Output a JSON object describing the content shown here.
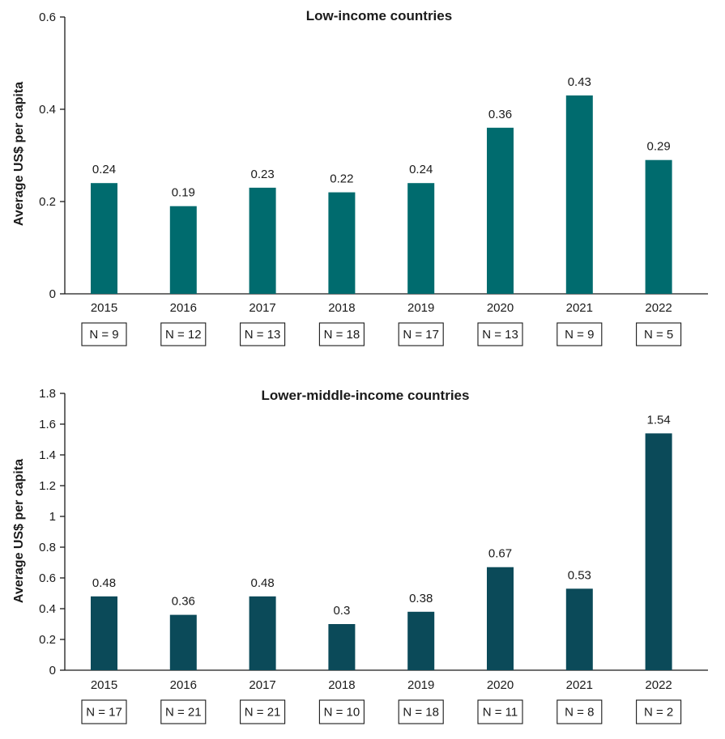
{
  "chart_data": [
    {
      "type": "bar",
      "title": "Low-income countries",
      "ylabel": "Average US$ per capita",
      "xlabel": "",
      "ylim": [
        0,
        0.6
      ],
      "yticks": [
        "0",
        "0.2",
        "0.4",
        "0.6"
      ],
      "categories": [
        "2015",
        "2016",
        "2017",
        "2018",
        "2019",
        "2020",
        "2021",
        "2022"
      ],
      "values": [
        0.24,
        0.19,
        0.23,
        0.22,
        0.24,
        0.36,
        0.43,
        0.29
      ],
      "value_labels": [
        "0.24",
        "0.19",
        "0.23",
        "0.22",
        "0.24",
        "0.36",
        "0.43",
        "0.29"
      ],
      "n_labels": [
        "N = 9",
        "N = 12",
        "N = 13",
        "N = 18",
        "N = 17",
        "N = 13",
        "N = 9",
        "N = 5"
      ],
      "color": "#006b6e",
      "grid": false
    },
    {
      "type": "bar",
      "title": "Lower-middle-income countries",
      "ylabel": "Average US$ per capita",
      "xlabel": "",
      "ylim": [
        0,
        1.8
      ],
      "yticks": [
        "0",
        "0.2",
        "0.4",
        "0.6",
        "0.8",
        "1",
        "1.2",
        "1.4",
        "1.6",
        "1.8"
      ],
      "categories": [
        "2015",
        "2016",
        "2017",
        "2018",
        "2019",
        "2020",
        "2021",
        "2022"
      ],
      "values": [
        0.48,
        0.36,
        0.48,
        0.3,
        0.38,
        0.67,
        0.53,
        1.54
      ],
      "value_labels": [
        "0.48",
        "0.36",
        "0.48",
        "0.3",
        "0.38",
        "0.67",
        "0.53",
        "1.54"
      ],
      "n_labels": [
        "N = 17",
        "N = 21",
        "N = 21",
        "N = 10",
        "N = 18",
        "N = 11",
        "N = 8",
        "N = 2"
      ],
      "color": "#0b4a59",
      "grid": false
    }
  ]
}
